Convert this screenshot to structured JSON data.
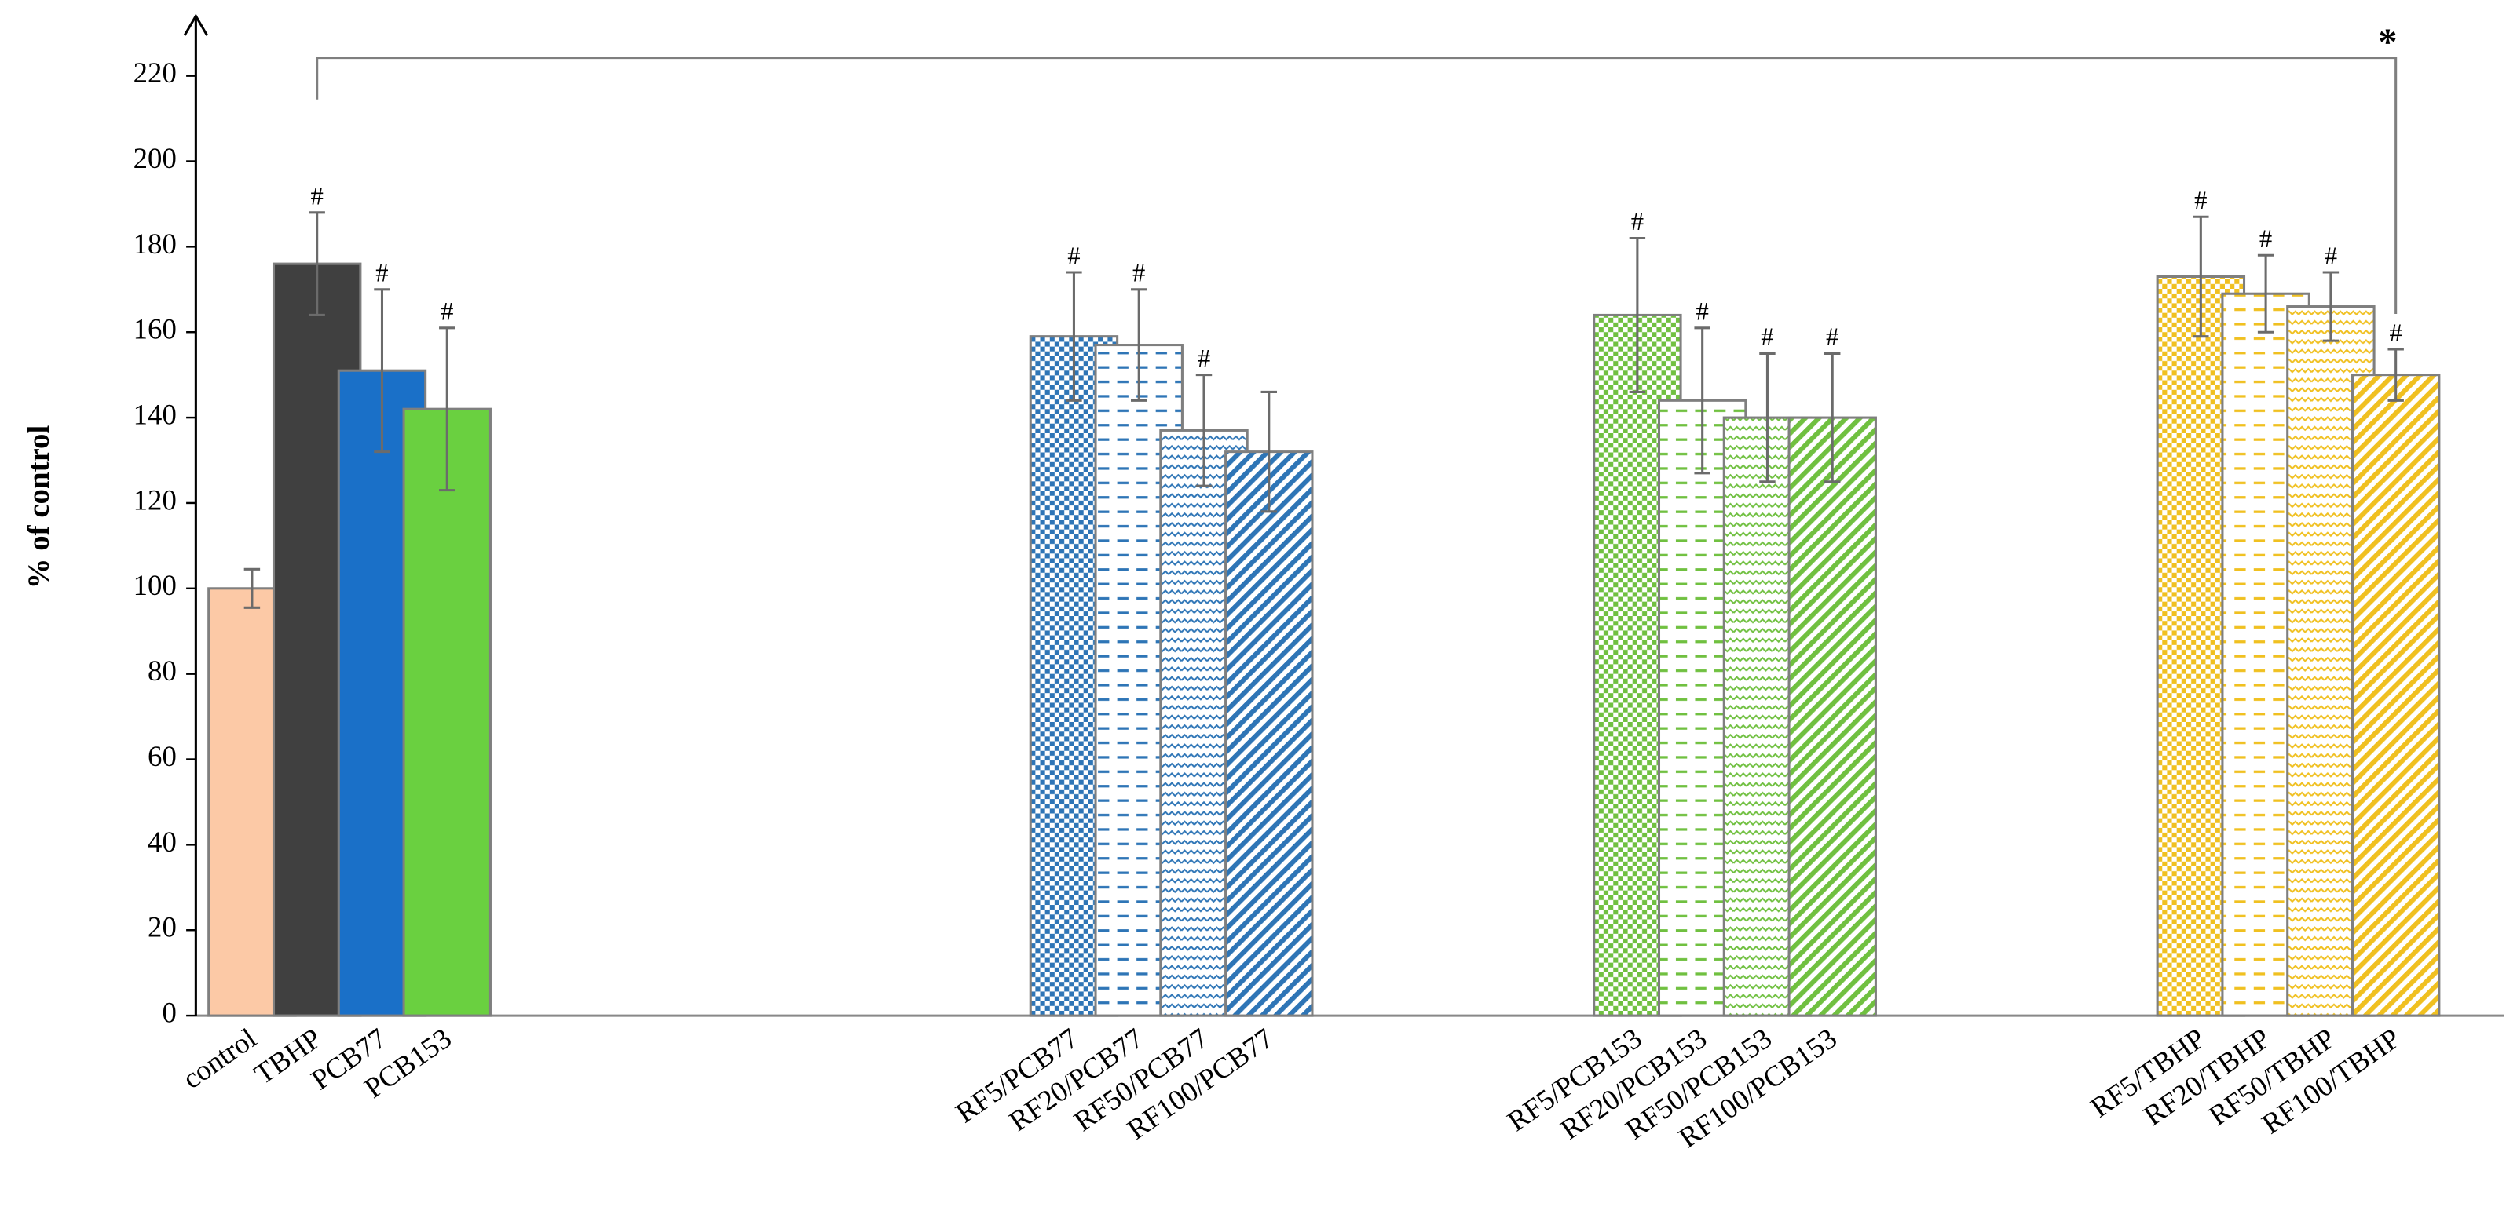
{
  "chart_data": {
    "type": "bar",
    "y_label": "% of control",
    "categories": [
      "control",
      "TBHP",
      "PCB77",
      "PCB153",
      "RF5/PCB77",
      "RF20/PCB77",
      "RF50/PCB77",
      "RF100/PCB77",
      "RF5/PCB153",
      "RF20/PCB153",
      "RF50/PCB153",
      "RF100/PCB153",
      "RF5/TBHP",
      "RF20/TBHP",
      "RF50/TBHP",
      "RF100/TBHP"
    ],
    "values": [
      100,
      176,
      151,
      142,
      159,
      157,
      137,
      132,
      164,
      144,
      140,
      140,
      173,
      169,
      166,
      150
    ],
    "errors": [
      4.5,
      12,
      19,
      19,
      15,
      13,
      13,
      14,
      18,
      17,
      15,
      15,
      14,
      9,
      8,
      6
    ],
    "colors": [
      "#fcc9a6",
      "#404040",
      "#1a70c8",
      "#6ad040",
      "#2e75b6",
      "#2e75b6",
      "#2e75b6",
      "#2e75b6",
      "#70c040",
      "#70c040",
      "#70c040",
      "#70c040",
      "#f0c020",
      "#f0c020",
      "#f0c020",
      "#f0c020"
    ],
    "patterns": [
      "solid",
      "solid",
      "solid",
      "solid",
      "dots",
      "dashes",
      "waves",
      "stripes",
      "dots",
      "dashes",
      "waves",
      "stripes",
      "dots",
      "dashes",
      "waves",
      "stripes"
    ],
    "annotations": [
      null,
      "#",
      "#",
      "#",
      "#",
      "#",
      "#",
      null,
      "#",
      "#",
      "#",
      "#",
      "#",
      "#",
      "#",
      "#"
    ],
    "bracket_label": "*",
    "ylim": [
      0,
      234
    ],
    "yticks": [
      0,
      20,
      40,
      60,
      80,
      100,
      120,
      140,
      160,
      180,
      200,
      220
    ]
  }
}
